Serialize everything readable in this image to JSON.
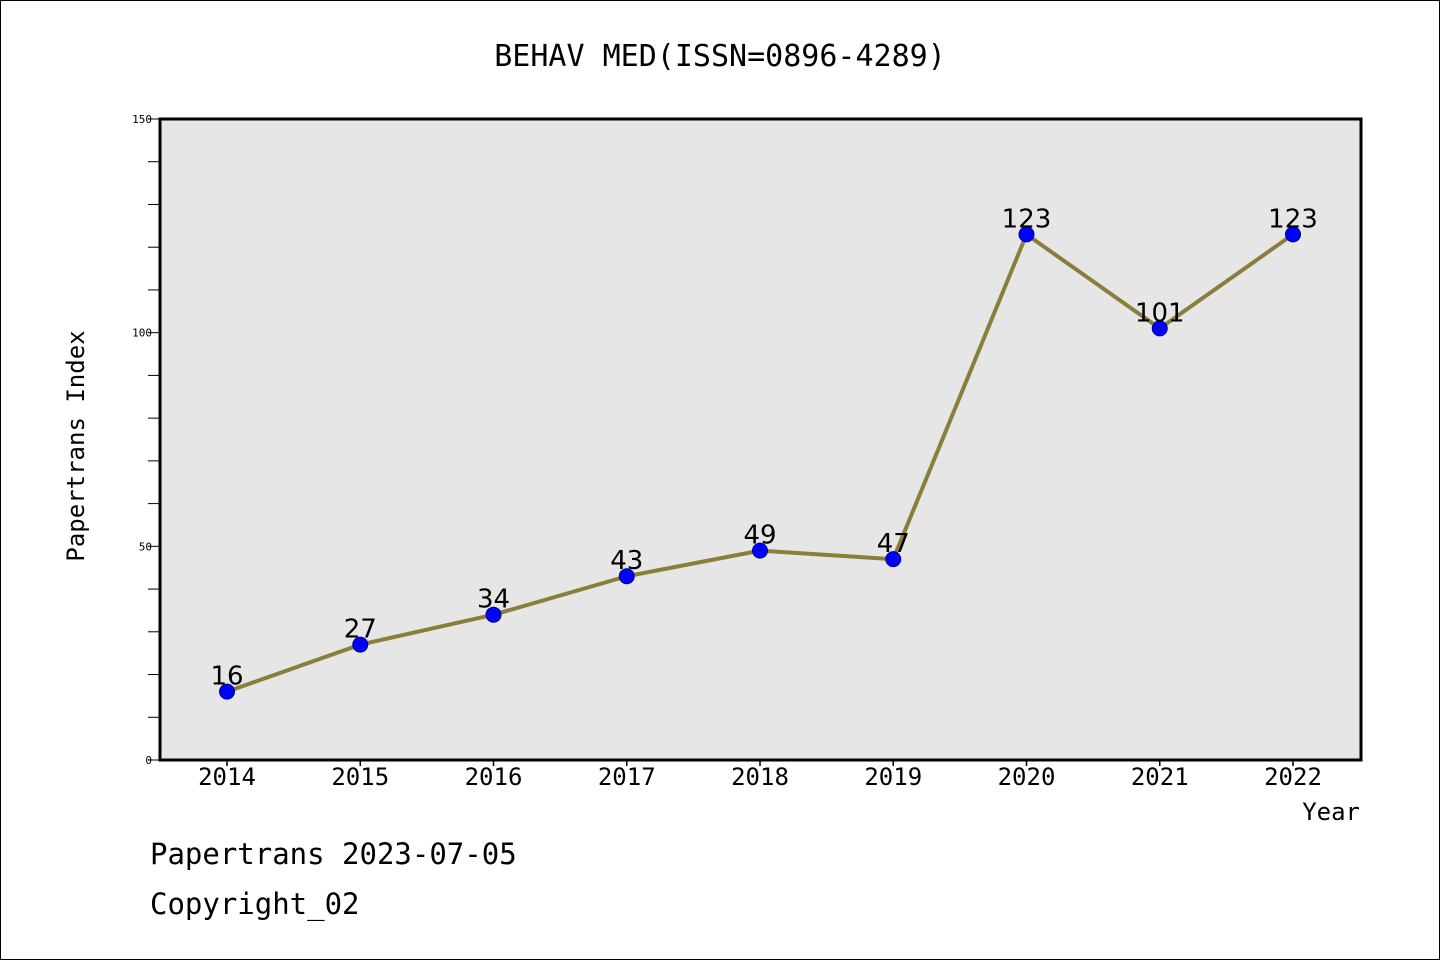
{
  "footer": {
    "line1": "Papertrans 2023-07-05",
    "line2": "Copyright_02"
  },
  "colors": {
    "plot_background": "#e6e6e6",
    "line": "#8b7d3a",
    "marker": "#0000ff"
  },
  "chart_data": {
    "type": "line",
    "title": "BEHAV MED(ISSN=0896-4289)",
    "xlabel": "Year",
    "ylabel": "Papertrans Index",
    "categories": [
      "2014",
      "2015",
      "2016",
      "2017",
      "2018",
      "2019",
      "2020",
      "2021",
      "2022"
    ],
    "values": [
      16,
      27,
      34,
      43,
      49,
      47,
      123,
      101,
      123
    ],
    "data_labels": [
      "16",
      "27",
      "34",
      "43",
      "49",
      "47",
      "123",
      "101",
      "123"
    ],
    "ylim": [
      0,
      150
    ],
    "yticks": [
      0,
      50,
      100,
      150
    ],
    "ytick_labels": [
      "0",
      "50",
      "100",
      "150"
    ],
    "grid": false,
    "legend": "none"
  }
}
